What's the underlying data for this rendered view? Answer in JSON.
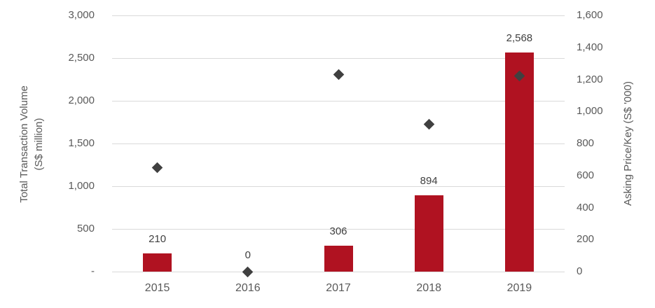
{
  "chart_data": {
    "type": "combo-bar-scatter",
    "categories": [
      "2015",
      "2016",
      "2017",
      "2018",
      "2019"
    ],
    "series": [
      {
        "name": "Total Transaction Volume (S$ million)",
        "type": "bar",
        "axis": "left",
        "values": [
          210,
          0,
          306,
          894,
          2568
        ],
        "data_labels": [
          "210",
          "0",
          "306",
          "894",
          "2,568"
        ],
        "color": "#B01221"
      },
      {
        "name": "Asking Price/Key (S$ '000)",
        "type": "scatter",
        "axis": "right",
        "marker": "diamond",
        "values": [
          650,
          0,
          1230,
          920,
          1220
        ],
        "color": "#404040"
      }
    ],
    "left_axis": {
      "title_line1": "Total Transaction Volume",
      "title_line2": "(S$ million)",
      "min": 0,
      "max": 3000,
      "step": 500,
      "tick_labels_top_to_bottom": [
        "3,000",
        "2,500",
        "2,000",
        "1,500",
        "1,000",
        "500",
        "-"
      ]
    },
    "right_axis": {
      "title": "Asking Price/Key (S$ '000)",
      "min": 0,
      "max": 1600,
      "step": 200,
      "tick_labels_top_to_bottom": [
        "1,600",
        "1,400",
        "1,200",
        "1,000",
        "800",
        "600",
        "400",
        "200",
        "0"
      ]
    },
    "grid": true,
    "legend": "none",
    "colors": {
      "bar": "#B01221",
      "marker": "#404040",
      "gridline": "#D9D9D9",
      "tick_text": "#595959",
      "data_label_text": "#404040",
      "background": "#FFFFFF"
    }
  }
}
